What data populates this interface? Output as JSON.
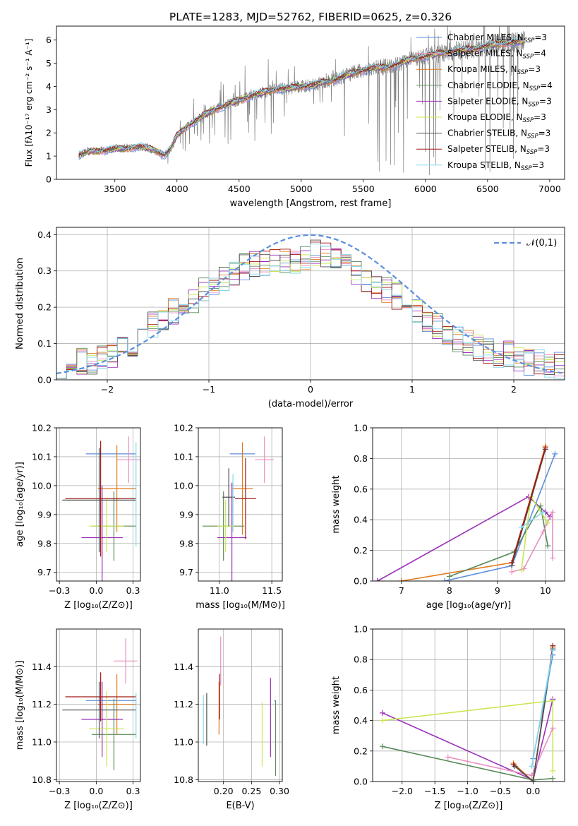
{
  "title": "PLATE=1283, MJD=52762, FIBERID=0625, z=0.326",
  "colors": {
    "Chabrier MILES": "#5b8fdc",
    "Salpeter MILES": "#e88fc0",
    "Kroupa MILES": "#e07b20",
    "Chabrier ELODIE": "#5a8a5a",
    "Salpeter ELODIE": "#9b30b8",
    "Kroupa ELODIE": "#c8e852",
    "Chabrier STELIB": "#505050",
    "Salpeter STELIB": "#a01818",
    "Kroupa STELIB": "#80d8ec"
  },
  "chart_data": [
    {
      "id": "spectrum",
      "type": "line",
      "title": "PLATE=1283, MJD=52762, FIBERID=0625, z=0.326",
      "xlabel": "wavelength [Angstrom, rest frame]",
      "ylabel": "Flux [fλ10⁻¹⁷ erg cm⁻² s⁻¹ A⁻¹]",
      "xlim": [
        3030,
        7120
      ],
      "ylim": [
        0,
        6.6
      ],
      "xticks": [
        3500,
        4000,
        4500,
        5000,
        5500,
        6000,
        6500,
        7000
      ],
      "yticks": [
        0,
        1,
        2,
        3,
        4,
        5,
        6
      ],
      "grid": false,
      "legend": "top-right",
      "data_color": "#808080",
      "continuum": {
        "x": [
          3210,
          3300,
          3400,
          3500,
          3600,
          3700,
          3800,
          3900,
          3950,
          4000,
          4100,
          4200,
          4300,
          4400,
          4500,
          4600,
          4700,
          4800,
          4900,
          5000,
          5100,
          5200,
          5300,
          5400,
          5500,
          5600,
          5700,
          5800,
          5900,
          6000,
          6100,
          6200,
          6300,
          6400,
          6500,
          6600,
          6700,
          6800
        ],
        "y": [
          1.05,
          1.2,
          1.25,
          1.3,
          1.35,
          1.4,
          1.3,
          1.05,
          1.3,
          1.9,
          2.35,
          2.7,
          3.0,
          3.2,
          3.4,
          3.6,
          3.75,
          3.9,
          3.9,
          4.0,
          4.05,
          4.2,
          4.35,
          4.55,
          4.7,
          4.8,
          4.85,
          5.0,
          5.2,
          5.3,
          5.4,
          5.5,
          5.55,
          5.65,
          5.75,
          5.85,
          5.9,
          5.95
        ]
      },
      "series": [
        {
          "name": "Chabrier MILES, N_SSP=3"
        },
        {
          "name": "Salpeter MILES, N_SSP=4"
        },
        {
          "name": "Kroupa MILES, N_SSP=3"
        },
        {
          "name": "Chabrier ELODIE, N_SSP=4"
        },
        {
          "name": "Salpeter ELODIE, N_SSP=3"
        },
        {
          "name": "Kroupa ELODIE, N_SSP=3"
        },
        {
          "name": "Chabrier STELIB, N_SSP=3"
        },
        {
          "name": "Salpeter STELIB, N_SSP=3"
        },
        {
          "name": "Kroupa STELIB, N_SSP=3"
        }
      ]
    },
    {
      "id": "residuals",
      "type": "histogram",
      "xlabel": "(data-model)/error",
      "ylabel": "Normed distribution",
      "xlim": [
        -2.5,
        2.5
      ],
      "ylim": [
        0,
        0.42
      ],
      "xticks": [
        -2,
        -1,
        0,
        1,
        2
      ],
      "yticks": [
        0.0,
        0.1,
        0.2,
        0.3,
        0.4
      ],
      "grid": true,
      "legend": "top-right",
      "legend_label": "𝒩(0,1)",
      "bin_width": 0.1,
      "envelope": [
        0.04,
        0.05,
        0.05,
        0.05,
        0.06,
        0.06,
        0.08,
        0.1,
        0.13,
        0.15,
        0.17,
        0.19,
        0.21,
        0.22,
        0.25,
        0.26,
        0.28,
        0.29,
        0.31,
        0.32,
        0.32,
        0.33,
        0.33,
        0.33,
        0.34,
        0.35,
        0.34,
        0.33,
        0.31,
        0.29,
        0.27,
        0.26,
        0.25,
        0.23,
        0.21,
        0.19,
        0.17,
        0.15,
        0.13,
        0.11,
        0.1,
        0.09,
        0.08,
        0.07,
        0.07,
        0.06,
        0.05,
        0.05,
        0.04,
        0.04
      ]
    },
    {
      "id": "age-vs-Z",
      "type": "errorbar",
      "xlabel": "Z [log₁₀(Z/Z⊙)]",
      "ylabel": "age  [log₁₀(age/yr)]",
      "xlim": [
        -0.27,
        0.3
      ],
      "ylim": [
        9.67,
        10.2
      ],
      "xticks": [
        -0.25,
        0.0,
        0.25
      ],
      "yticks": [
        9.7,
        9.8,
        9.9,
        10.0,
        10.1,
        10.2
      ],
      "grid": true,
      "points": [
        {
          "series": "Chabrier MILES",
          "x": 0.1,
          "xerr": 0.17,
          "y": 10.11,
          "yerr": 0.0
        },
        {
          "series": "Salpeter MILES",
          "x": 0.22,
          "xerr": 0.08,
          "y": 10.09,
          "yerr": 0.08
        },
        {
          "series": "Kroupa MILES",
          "x": 0.14,
          "xerr": 0.13,
          "y": 9.99,
          "yerr": 0.15
        },
        {
          "series": "Chabrier ELODIE",
          "x": 0.12,
          "xerr": 0.15,
          "y": 9.86,
          "yerr": 0.12
        },
        {
          "series": "Salpeter ELODIE",
          "x": 0.04,
          "xerr": 0.14,
          "y": 9.82,
          "yerr": 0.18
        },
        {
          "series": "Kroupa ELODIE",
          "x": 0.07,
          "xerr": 0.12,
          "y": 9.86,
          "yerr": 0.09
        },
        {
          "series": "Chabrier STELIB",
          "x": 0.02,
          "xerr": 0.25,
          "y": 9.95,
          "yerr": 0.18
        },
        {
          "series": "Salpeter STELIB",
          "x": 0.03,
          "xerr": 0.24,
          "y": 9.955,
          "yerr": 0.2
        },
        {
          "series": "Kroupa STELIB",
          "x": 0.27,
          "xerr": 0.0,
          "y": 9.97,
          "yerr": 0.18
        }
      ]
    },
    {
      "id": "age-vs-mass",
      "type": "errorbar",
      "xlabel": "mass [log₁₀(M/M⊙)]",
      "ylabel": "",
      "xlim": [
        10.8,
        11.6
      ],
      "ylim": [
        9.67,
        10.2
      ],
      "xticks": [
        11.0,
        11.5
      ],
      "yticks": [
        9.7,
        9.8,
        9.9,
        10.0,
        10.1,
        10.2
      ],
      "grid": true,
      "points": [
        {
          "series": "Chabrier MILES",
          "x": 11.22,
          "xerr": 0.12,
          "y": 10.11,
          "yerr": 0.0
        },
        {
          "series": "Salpeter MILES",
          "x": 11.43,
          "xerr": 0.09,
          "y": 10.09,
          "yerr": 0.08
        },
        {
          "series": "Kroupa MILES",
          "x": 11.22,
          "xerr": 0.1,
          "y": 9.99,
          "yerr": 0.16
        },
        {
          "series": "Chabrier ELODIE",
          "x": 11.04,
          "xerr": 0.2,
          "y": 9.86,
          "yerr": 0.12
        },
        {
          "series": "Salpeter ELODIE",
          "x": 11.12,
          "xerr": 0.14,
          "y": 9.82,
          "yerr": 0.19
        },
        {
          "series": "Kroupa ELODIE",
          "x": 11.06,
          "xerr": 0.08,
          "y": 9.86,
          "yerr": 0.09
        },
        {
          "series": "Chabrier STELIB",
          "x": 11.09,
          "xerr": 0.06,
          "y": 9.96,
          "yerr": 0.1
        },
        {
          "series": "Salpeter STELIB",
          "x": 11.25,
          "xerr": 0.1,
          "y": 9.955,
          "yerr": 0.14
        },
        {
          "series": "Kroupa STELIB",
          "x": 11.13,
          "xerr": 0.0,
          "y": 9.94,
          "yerr": 0.1
        }
      ]
    },
    {
      "id": "weight-vs-age",
      "type": "line",
      "xlabel": "age  [log₁₀(age/yr)]",
      "ylabel": "mass weight",
      "xlim": [
        6.4,
        10.4
      ],
      "ylim": [
        0,
        1.0
      ],
      "xticks": [
        7,
        8,
        9,
        10
      ],
      "yticks": [
        0.0,
        0.2,
        0.4,
        0.6,
        0.8,
        1.0
      ],
      "grid": true,
      "series": [
        {
          "series": "Salpeter ELODIE",
          "x": [
            6.5,
            9.65,
            10.0,
            10.1
          ],
          "y": [
            0.0,
            0.55,
            0.45,
            0.42
          ]
        },
        {
          "series": "Kroupa MILES",
          "x": [
            7.0,
            9.3,
            10.0
          ],
          "y": [
            0.0,
            0.12,
            0.88
          ]
        },
        {
          "series": "Chabrier MILES",
          "x": [
            7.9,
            9.3,
            10.2
          ],
          "y": [
            0.0,
            0.1,
            0.83
          ]
        },
        {
          "series": "Chabrier ELODIE",
          "x": [
            8.0,
            9.35,
            9.9,
            10.05
          ],
          "y": [
            0.03,
            0.19,
            0.49,
            0.23
          ]
        },
        {
          "series": "Salpeter MILES",
          "x": [
            9.3,
            9.55,
            9.95,
            10.15,
            10.15
          ],
          "y": [
            0.06,
            0.08,
            0.32,
            0.45,
            0.15
          ]
        },
        {
          "series": "Kroupa ELODIE",
          "x": [
            9.5,
            9.7,
            10.05
          ],
          "y": [
            0.07,
            0.55,
            0.38
          ]
        },
        {
          "series": "Chabrier STELIB",
          "x": [
            9.3,
            10.0
          ],
          "y": [
            0.1,
            0.86
          ]
        },
        {
          "series": "Salpeter STELIB",
          "x": [
            9.3,
            10.0
          ],
          "y": [
            0.12,
            0.87
          ]
        },
        {
          "series": "Kroupa STELIB",
          "x": [
            9.5,
            9.95
          ],
          "y": [
            0.35,
            0.45
          ]
        }
      ]
    },
    {
      "id": "mass-vs-Z",
      "type": "errorbar",
      "xlabel": "Z [log₁₀(Z/Z⊙)]",
      "ylabel": "mass [log₁₀(M/M⊙)]",
      "xlim": [
        -0.27,
        0.3
      ],
      "ylim": [
        10.79,
        11.6
      ],
      "xticks": [
        -0.25,
        0.0,
        0.25
      ],
      "yticks": [
        10.8,
        11.0,
        11.2,
        11.4
      ],
      "grid": true,
      "points": [
        {
          "series": "Chabrier MILES",
          "x": 0.1,
          "xerr": 0.17,
          "y": 11.22,
          "yerr": 0.0
        },
        {
          "series": "Salpeter MILES",
          "x": 0.2,
          "xerr": 0.08,
          "y": 11.43,
          "yerr": 0.12
        },
        {
          "series": "Kroupa MILES",
          "x": 0.14,
          "xerr": 0.13,
          "y": 11.2,
          "yerr": 0.16
        },
        {
          "series": "Chabrier ELODIE",
          "x": 0.12,
          "xerr": 0.15,
          "y": 11.04,
          "yerr": 0.19
        },
        {
          "series": "Salpeter ELODIE",
          "x": 0.04,
          "xerr": 0.14,
          "y": 11.12,
          "yerr": 0.2
        },
        {
          "series": "Kroupa ELODIE",
          "x": 0.07,
          "xerr": 0.12,
          "y": 11.07,
          "yerr": 0.2
        },
        {
          "series": "Chabrier STELIB",
          "x": 0.02,
          "xerr": 0.25,
          "y": 11.17,
          "yerr": 0.15
        },
        {
          "series": "Salpeter STELIB",
          "x": 0.03,
          "xerr": 0.24,
          "y": 11.24,
          "yerr": 0.13
        },
        {
          "series": "Kroupa STELIB",
          "x": 0.27,
          "xerr": 0.0,
          "y": 11.14,
          "yerr": 0.12
        }
      ]
    },
    {
      "id": "mass-vs-EBV",
      "type": "errorbar",
      "xlabel": "E(B-V)",
      "ylabel": "",
      "xlim": [
        0.155,
        0.305
      ],
      "ylim": [
        10.79,
        11.6
      ],
      "xticks": [
        0.2,
        0.25,
        0.3
      ],
      "yticks": [
        10.8,
        11.0,
        11.2,
        11.4
      ],
      "grid": true,
      "points": [
        {
          "series": "Chabrier MILES",
          "x": 0.292,
          "xerr": 0.0,
          "y": 11.22,
          "yerr": 0.0
        },
        {
          "series": "Salpeter MILES",
          "x": 0.195,
          "xerr": 0.0,
          "y": 11.43,
          "yerr": 0.13
        },
        {
          "series": "Kroupa MILES",
          "x": 0.192,
          "xerr": 0.0,
          "y": 11.18,
          "yerr": 0.14
        },
        {
          "series": "Chabrier ELODIE",
          "x": 0.293,
          "xerr": 0.0,
          "y": 11.02,
          "yerr": 0.2
        },
        {
          "series": "Salpeter ELODIE",
          "x": 0.284,
          "xerr": 0.0,
          "y": 11.13,
          "yerr": 0.21
        },
        {
          "series": "Kroupa ELODIE",
          "x": 0.269,
          "xerr": 0.0,
          "y": 11.04,
          "yerr": 0.17
        },
        {
          "series": "Chabrier STELIB",
          "x": 0.17,
          "xerr": 0.0,
          "y": 11.12,
          "yerr": 0.14
        },
        {
          "series": "Salpeter STELIB",
          "x": 0.193,
          "xerr": 0.0,
          "y": 11.24,
          "yerr": 0.12
        },
        {
          "series": "Kroupa STELIB",
          "x": 0.164,
          "xerr": 0.0,
          "y": 11.12,
          "yerr": 0.13
        }
      ]
    },
    {
      "id": "weight-vs-Z",
      "type": "line",
      "xlabel": "Z [log₁₀(Z/Z⊙)]",
      "ylabel": "mass weight",
      "xlim": [
        -2.45,
        0.48
      ],
      "ylim": [
        0,
        1.0
      ],
      "xticks": [
        -2.0,
        -1.5,
        -1.0,
        -0.5,
        0.0
      ],
      "yticks": [
        0.0,
        0.2,
        0.4,
        0.6,
        0.8,
        1.0
      ],
      "grid": true,
      "series": [
        {
          "series": "Salpeter ELODIE",
          "x": [
            -2.3,
            0.0,
            0.3
          ],
          "y": [
            0.45,
            0.01,
            0.54
          ]
        },
        {
          "series": "Chabrier ELODIE",
          "x": [
            -2.3,
            0.0,
            0.3
          ],
          "y": [
            0.23,
            0.01,
            0.02
          ]
        },
        {
          "series": "Kroupa ELODIE",
          "x": [
            -2.3,
            0.3,
            0.3
          ],
          "y": [
            0.4,
            0.53,
            0.07
          ]
        },
        {
          "series": "Salpeter MILES",
          "x": [
            -1.3,
            -0.02,
            0.3
          ],
          "y": [
            0.16,
            0.04,
            0.35
          ]
        },
        {
          "series": "Kroupa MILES",
          "x": [
            -0.3,
            0.0,
            0.3
          ],
          "y": [
            0.12,
            0.0,
            0.88
          ]
        },
        {
          "series": "Salpeter STELIB",
          "x": [
            -0.3,
            0.0,
            0.3
          ],
          "y": [
            0.11,
            0.0,
            0.89
          ]
        },
        {
          "series": "Chabrier STELIB",
          "x": [
            -0.28,
            0.0,
            0.3
          ],
          "y": [
            0.1,
            0.0,
            0.87
          ]
        },
        {
          "series": "Chabrier MILES",
          "x": [
            0.0,
            0.3
          ],
          "y": [
            0.15,
            0.83
          ]
        },
        {
          "series": "Kroupa STELIB",
          "x": [
            -0.02,
            0.3
          ],
          "y": [
            0.1,
            0.86
          ]
        }
      ]
    }
  ]
}
